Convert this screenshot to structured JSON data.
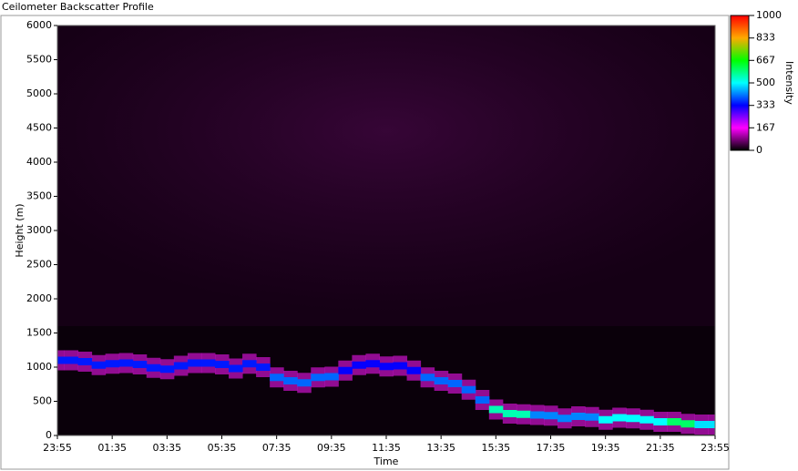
{
  "chart_data": {
    "type": "heatmap",
    "title": "Ceilometer Backscatter Profile",
    "x_label": "Time",
    "y_label": "Height (m)",
    "colorbar_label": "Intensity",
    "categories": [
      "23:55",
      null,
      null,
      null,
      "01:35",
      null,
      null,
      null,
      "03:35",
      null,
      null,
      null,
      "05:35",
      null,
      null,
      null,
      "07:35",
      null,
      null,
      null,
      "09:35",
      null,
      null,
      null,
      "11:35",
      null,
      null,
      null,
      "13:35",
      null,
      null,
      null,
      "15:35",
      null,
      null,
      null,
      "17:35",
      null,
      null,
      null,
      "19:35",
      null,
      null,
      null,
      "21:35",
      null,
      null,
      null,
      "23:55"
    ],
    "values": [
      1100,
      1100,
      1080,
      1030,
      1050,
      1060,
      1040,
      990,
      970,
      1020,
      1060,
      1060,
      1040,
      980,
      1050,
      1000,
      850,
      800,
      770,
      850,
      860,
      950,
      1030,
      1050,
      1010,
      1020,
      950,
      850,
      800,
      760,
      670,
      520,
      380,
      320,
      310,
      300,
      290,
      250,
      280,
      270,
      230,
      260,
      250,
      230,
      200,
      200,
      170,
      160,
      160
    ],
    "intensity": [
      350,
      350,
      350,
      350,
      350,
      350,
      350,
      350,
      350,
      350,
      350,
      350,
      350,
      350,
      350,
      350,
      400,
      400,
      400,
      400,
      400,
      330,
      330,
      330,
      330,
      330,
      330,
      400,
      400,
      400,
      400,
      400,
      550,
      550,
      550,
      420,
      420,
      420,
      420,
      420,
      500,
      500,
      500,
      500,
      500,
      600,
      600,
      480,
      480
    ],
    "ylim": [
      0,
      6000
    ],
    "yticks": [
      0,
      500,
      1000,
      1500,
      2000,
      2500,
      3000,
      3500,
      4000,
      4500,
      5000,
      5500,
      6000
    ],
    "clim": [
      0,
      1000
    ],
    "cticks": [
      0,
      167,
      333,
      500,
      667,
      833,
      1000
    ],
    "colorscale": [
      "#000000",
      "#ff00ff",
      "#0000ff",
      "#00ffff",
      "#00ff00",
      "#ffaa00",
      "#ff0000"
    ]
  }
}
